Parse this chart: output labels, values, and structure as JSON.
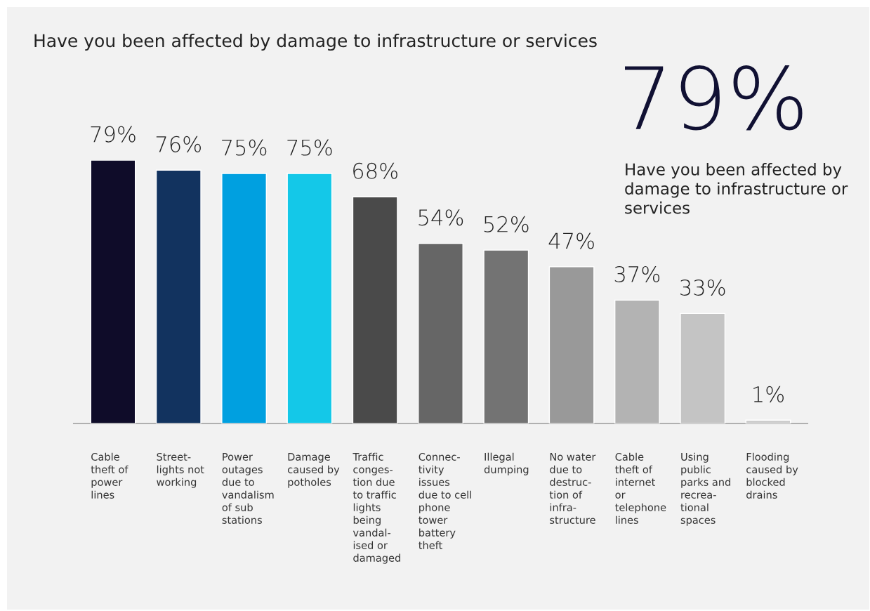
{
  "chart_data": {
    "type": "bar",
    "title": "Have you been affected by damage to infrastructure or services",
    "categories": [
      "Cable\ntheft of\npower\nlines",
      "Street-\nlights not\nworking",
      "Power\noutages\ndue to\nvandalism\nof sub\nstations",
      "Damage\ncaused by\npotholes",
      "Traffic\nconges-\ntion due\nto traffic\nlights\nbeing\nvandal-\nised or\ndamaged",
      "Connec-\ntivity\nissues\ndue to cell\nphone\ntower\nbattery\ntheft",
      "Illegal\ndumping",
      "No water\ndue to\ndestruc-\ntion of\ninfra-\nstructure",
      "Cable\ntheft of\ninternet\nor\ntelephone\nlines",
      "Using\npublic\nparks and\nrecrea-\ntional\nspaces",
      "Flooding\ncaused by\nblocked\ndrains"
    ],
    "values": [
      79,
      76,
      75,
      75,
      68,
      54,
      52,
      47,
      37,
      33,
      1
    ],
    "value_labels": [
      "79%",
      "76%",
      "75%",
      "75%",
      "68%",
      "54%",
      "52%",
      "47%",
      "37%",
      "33%",
      "1%"
    ],
    "colors": [
      "#0f0c29",
      "#12335f",
      "#00a0e0",
      "#14c8e8",
      "#4a4a4a",
      "#666666",
      "#737373",
      "#999999",
      "#b3b3b3",
      "#c4c4c4",
      "#cccccc"
    ],
    "annotations": [
      "79%",
      "Have you been affected by damage to infrastructure or services"
    ]
  }
}
